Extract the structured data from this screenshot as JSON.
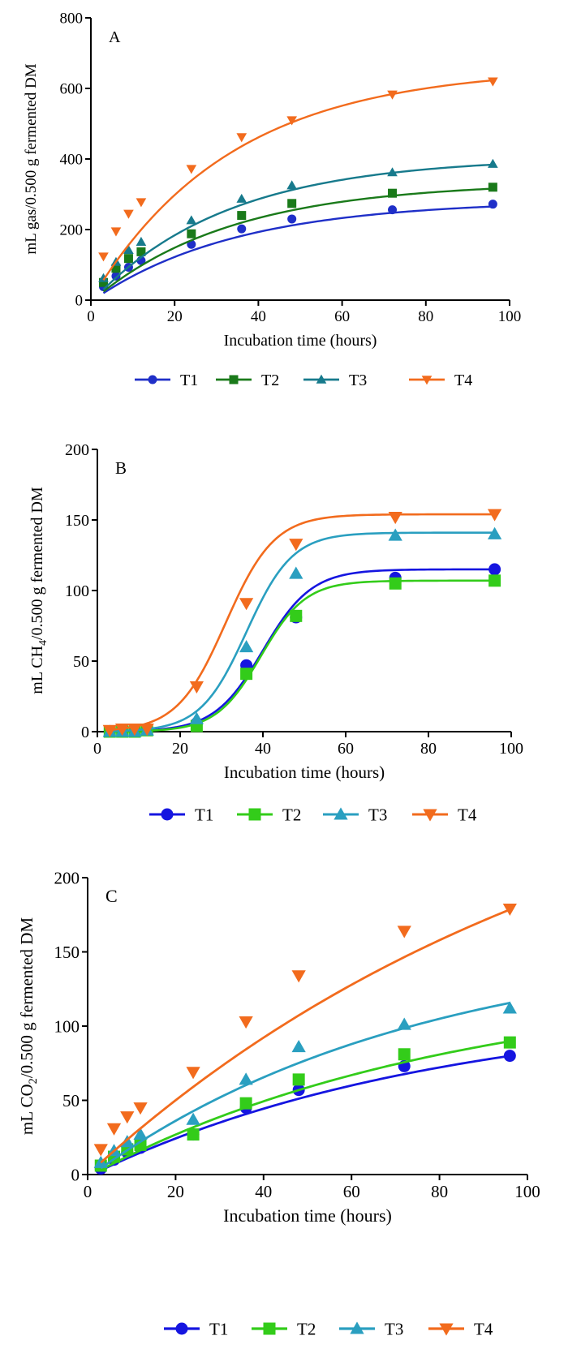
{
  "chart_data": [
    {
      "type": "scatter",
      "panel_label": "A",
      "xlabel": "Incubation time (hours)",
      "ylabel": "mL gas/0.500 g  fermented DM",
      "ylabel_sub": "",
      "ylabel_rest": "",
      "xlim": [
        0,
        100
      ],
      "ylim": [
        0,
        800
      ],
      "xticks": [
        0,
        20,
        40,
        60,
        80,
        100
      ],
      "yticks": [
        0,
        200,
        400,
        600,
        800
      ],
      "x": [
        3,
        6,
        9,
        12,
        24,
        36,
        48,
        72,
        96
      ],
      "series": [
        {
          "name": "T1",
          "color": "#1f2fc8",
          "marker": "circle",
          "values": [
            38,
            68,
            93,
            112,
            158,
            202,
            230,
            256,
            272
          ],
          "fit": {
            "model": "exp",
            "a": 283,
            "c": 0.029,
            "lag": 0.5
          }
        },
        {
          "name": "T2",
          "color": "#1a7a1a",
          "marker": "square",
          "values": [
            50,
            90,
            118,
            137,
            188,
            240,
            274,
            303,
            320
          ],
          "fit": {
            "model": "exp",
            "a": 335,
            "c": 0.03,
            "lag": 0.5
          }
        },
        {
          "name": "T3",
          "color": "#177a8c",
          "marker": "triangle-up",
          "values": [
            62,
            108,
            142,
            165,
            226,
            287,
            325,
            362,
            386
          ],
          "fit": {
            "model": "exp",
            "a": 405,
            "c": 0.031,
            "lag": 0.5
          }
        },
        {
          "name": "T4",
          "color": "#f26b1d",
          "marker": "triangle-down",
          "values": [
            124,
            195,
            245,
            278,
            372,
            462,
            510,
            583,
            620
          ],
          "fit": {
            "model": "exp",
            "a": 660,
            "c": 0.03,
            "lag": 0
          }
        }
      ]
    },
    {
      "type": "scatter",
      "panel_label": "B",
      "xlabel": "Incubation time (hours)",
      "ylabel": "mL CH",
      "ylabel_sub": "4",
      "ylabel_rest": "/0.500 g  fermented DM",
      "xlim": [
        0,
        100
      ],
      "ylim": [
        0,
        200
      ],
      "xticks": [
        0,
        20,
        40,
        60,
        80,
        100
      ],
      "yticks": [
        0,
        50,
        100,
        150,
        200
      ],
      "x": [
        3,
        6,
        9,
        12,
        24,
        36,
        48,
        72,
        96
      ],
      "series": [
        {
          "name": "T1",
          "color": "#1515e0",
          "marker": "circle",
          "values": [
            0,
            0,
            0,
            2,
            6,
            47,
            81,
            109,
            115
          ],
          "fit": {
            "model": "sigmoid",
            "a": 115,
            "k": 0.17,
            "m": 40
          }
        },
        {
          "name": "T2",
          "color": "#33cc1a",
          "marker": "square",
          "values": [
            0,
            0,
            0,
            1,
            4,
            41,
            82,
            105,
            107
          ],
          "fit": {
            "model": "sigmoid",
            "a": 107,
            "k": 0.185,
            "m": 39.5
          }
        },
        {
          "name": "T3",
          "color": "#2a9fc0",
          "marker": "triangle-up",
          "values": [
            0,
            0,
            0,
            1,
            9,
            60,
            112,
            139,
            140
          ],
          "fit": {
            "model": "sigmoid",
            "a": 141,
            "k": 0.18,
            "m": 36
          }
        },
        {
          "name": "T4",
          "color": "#f26b1d",
          "marker": "triangle-down",
          "values": [
            1,
            2,
            2,
            2,
            32,
            91,
            133,
            152,
            154
          ],
          "fit": {
            "model": "sigmoid",
            "a": 154,
            "k": 0.17,
            "m": 31
          }
        }
      ]
    },
    {
      "type": "scatter",
      "panel_label": "C",
      "xlabel": "Incubation time (hours)",
      "ylabel": "mL CO",
      "ylabel_sub": "2",
      "ylabel_rest": "/0.500 g  fermented DM",
      "xlim": [
        0,
        100
      ],
      "ylim": [
        0,
        200
      ],
      "xticks": [
        0,
        20,
        40,
        60,
        80,
        100
      ],
      "yticks": [
        0,
        50,
        100,
        150,
        200
      ],
      "x": [
        3,
        6,
        9,
        12,
        24,
        36,
        48,
        72,
        96
      ],
      "series": [
        {
          "name": "T1",
          "color": "#1515e0",
          "marker": "circle",
          "values": [
            4,
            10,
            15,
            18,
            27,
            45,
            57,
            73,
            80
          ],
          "fit": {
            "model": "exp",
            "a": 115,
            "c": 0.0125,
            "lag": 1
          }
        },
        {
          "name": "T2",
          "color": "#33cc1a",
          "marker": "square",
          "values": [
            6,
            12,
            17,
            20,
            27,
            48,
            64,
            81,
            89
          ],
          "fit": {
            "model": "exp",
            "a": 132,
            "c": 0.012,
            "lag": 1
          }
        },
        {
          "name": "T3",
          "color": "#2a9fc0",
          "marker": "triangle-up",
          "values": [
            8,
            16,
            22,
            27,
            37,
            64,
            86,
            101,
            112
          ],
          "fit": {
            "model": "exp",
            "a": 160,
            "c": 0.0135,
            "lag": 1
          }
        },
        {
          "name": "T4",
          "color": "#f26b1d",
          "marker": "triangle-down",
          "values": [
            17,
            31,
            39,
            45,
            69,
            103,
            134,
            164,
            179
          ],
          "fit": {
            "model": "exp",
            "a": 320,
            "c": 0.0085,
            "lag": 0
          }
        }
      ]
    }
  ]
}
